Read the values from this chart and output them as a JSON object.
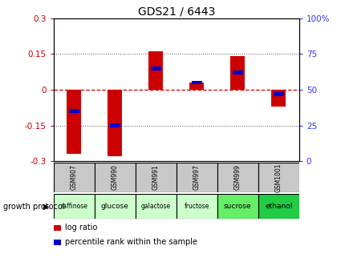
{
  "title": "GDS21 / 6443",
  "samples": [
    "GSM907",
    "GSM990",
    "GSM991",
    "GSM997",
    "GSM999",
    "GSM1001"
  ],
  "conditions": [
    "raffinose",
    "glucose",
    "galactose",
    "fructose",
    "sucrose",
    "ethanol"
  ],
  "log_ratios": [
    -0.27,
    -0.28,
    0.16,
    0.03,
    0.14,
    -0.07
  ],
  "percentile_ranks": [
    35,
    25,
    65,
    55,
    62,
    47
  ],
  "bar_color": "#cc0000",
  "pct_color": "#0000cc",
  "ylim_left": [
    -0.3,
    0.3
  ],
  "ylim_right": [
    0,
    100
  ],
  "yticks_left": [
    -0.3,
    -0.15,
    0,
    0.15,
    0.3
  ],
  "yticks_right": [
    0,
    25,
    50,
    75,
    100
  ],
  "ytick_labels_left": [
    "-0.3",
    "-0.15",
    "0",
    "0.15",
    "0.3"
  ],
  "ytick_labels_right": [
    "0",
    "25",
    "50",
    "75",
    "100%"
  ],
  "left_ylabel_color": "#cc0000",
  "right_ylabel_color": "#3333ff",
  "condition_colors": [
    "#ccffcc",
    "#ccffcc",
    "#ccffcc",
    "#ccffcc",
    "#66ee66",
    "#22cc44"
  ],
  "sample_bg_color": "#c8c8c8",
  "bar_width": 0.35,
  "growth_protocol_label": "growth protocol",
  "legend_log_ratio": "log ratio",
  "legend_pct": "percentile rank within the sample",
  "background_color": "#ffffff",
  "plot_bg_color": "#ffffff"
}
